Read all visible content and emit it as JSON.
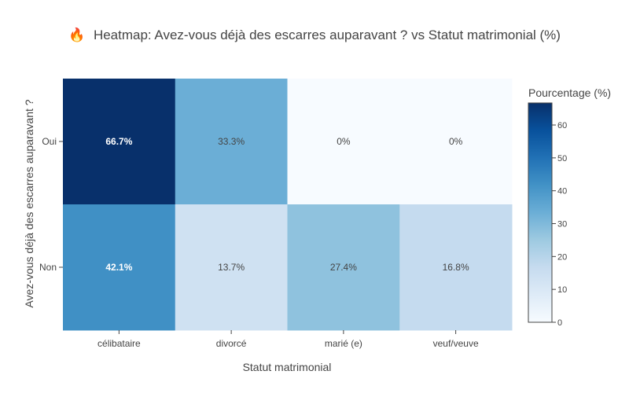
{
  "chart_data": {
    "type": "heatmap",
    "title_icon": "🔥",
    "title": "Heatmap: Avez-vous déjà des escarres auparavant ? vs Statut matrimonial (%)",
    "xlabel": "Statut matrimonial",
    "ylabel": "Avez-vous déjà des escarres auparavant ?",
    "x_categories": [
      "célibataire",
      "divorcé",
      "marié (e)",
      "veuf/veuve"
    ],
    "y_categories": [
      "Oui",
      "Non"
    ],
    "values": [
      [
        66.7,
        33.3,
        0,
        0
      ],
      [
        42.1,
        13.7,
        27.4,
        16.8
      ]
    ],
    "labels": [
      [
        "66.7%",
        "33.3%",
        "0%",
        "0%"
      ],
      [
        "42.1%",
        "13.7%",
        "27.4%",
        "16.8%"
      ]
    ],
    "colorscale": {
      "name": "Blues",
      "stops": [
        "#f7fbff",
        "#deebf7",
        "#c6dbef",
        "#9ecae1",
        "#6baed6",
        "#4292c6",
        "#2171b5",
        "#08519c",
        "#08306b"
      ]
    },
    "zlim": [
      0,
      66.7
    ],
    "colorbar": {
      "title": "Pourcentage (%)",
      "ticks": [
        0,
        10,
        20,
        30,
        40,
        50,
        60
      ],
      "tick_labels": [
        "0",
        "10",
        "20",
        "30",
        "40",
        "50",
        "60"
      ]
    }
  }
}
